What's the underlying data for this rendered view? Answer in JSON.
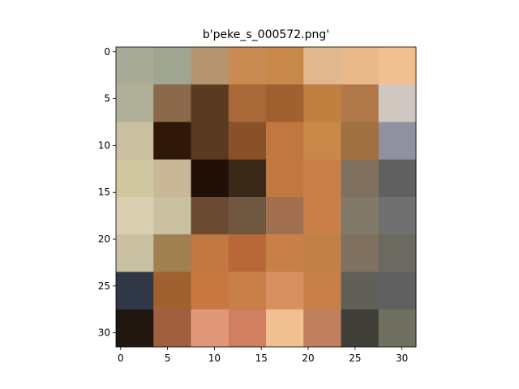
{
  "title": "b'peke_s_000572.png'",
  "axes": {
    "xlim": [
      -0.5,
      31.5
    ],
    "ylim": [
      31.5,
      -0.5
    ],
    "xticks": [
      0,
      5,
      10,
      15,
      20,
      25,
      30
    ],
    "yticks": [
      0,
      5,
      10,
      15,
      20,
      25,
      30
    ]
  }
}
